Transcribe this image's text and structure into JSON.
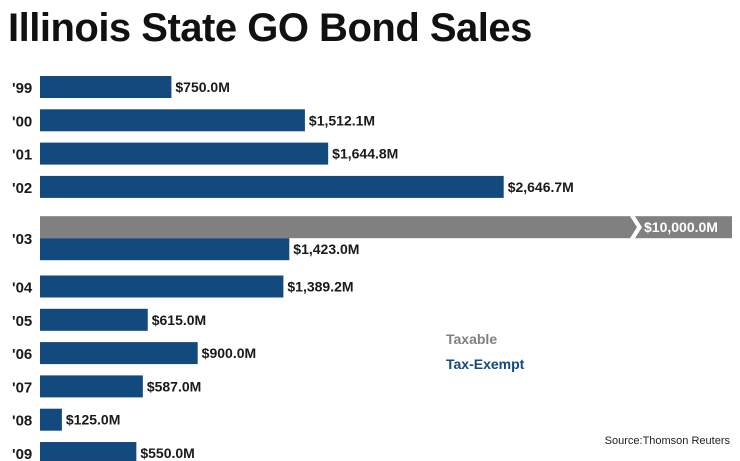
{
  "chart_data": {
    "type": "bar",
    "orientation": "horizontal",
    "title": "Illinois State GO Bond Sales",
    "categories": [
      "'99",
      "'00",
      "'01",
      "'02",
      "'03",
      "'04",
      "'05",
      "'06",
      "'07",
      "'08",
      "'09"
    ],
    "series": [
      {
        "name": "Tax-Exempt",
        "values": [
          750.0,
          1512.1,
          1644.8,
          2646.7,
          1423.0,
          1389.2,
          615.0,
          900.0,
          587.0,
          125.0,
          550.0
        ],
        "labels": [
          "$750.0M",
          "$1,512.1M",
          "$1,644.8M",
          "$2,646.7M",
          "$1,423.0M",
          "$1,389.2M",
          "$615.0M",
          "$900.0M",
          "$587.0M",
          "$125.0M",
          "$550.0M"
        ]
      },
      {
        "name": "Taxable",
        "values": [
          null,
          null,
          null,
          null,
          10000.0,
          null,
          null,
          null,
          null,
          null,
          null
        ],
        "labels": [
          "",
          "",
          "",
          "",
          "$10,000.0M",
          "",
          "",
          "",
          "",
          "",
          ""
        ],
        "axis_break": true
      }
    ],
    "legend": [
      {
        "name": "Taxable",
        "color": "#808080"
      },
      {
        "name": "Tax-Exempt",
        "color": "#124a7d"
      }
    ],
    "colors": {
      "tax_exempt": "#124a7d",
      "taxable": "#808080"
    },
    "units": "millions of dollars",
    "xlabel": "",
    "ylabel": "",
    "grid": false,
    "legend_position": "right"
  },
  "source": "Source:Thomson Reuters"
}
